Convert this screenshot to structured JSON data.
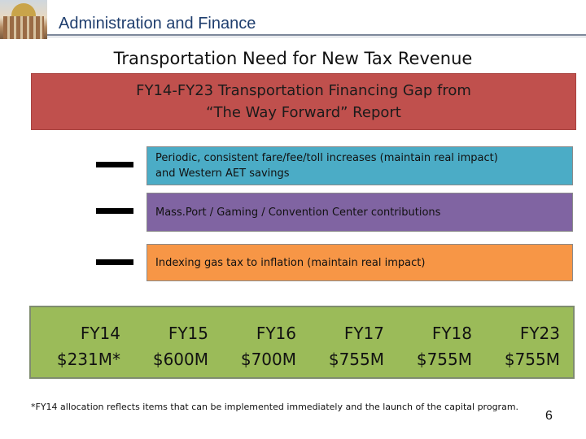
{
  "header": {
    "title": "Administration and Finance"
  },
  "slide": {
    "title": "Transportation Need for New Tax Revenue",
    "gap_box": {
      "line1": "FY14-FY23 Transportation Financing Gap from",
      "line2": "“The Way Forward” Report",
      "color": "#c0504d"
    },
    "components": [
      {
        "line1": "Periodic, consistent fare/fee/toll increases (maintain real impact)",
        "line2": "and Western AET savings",
        "color": "#4bacc6"
      },
      {
        "line1": "Mass.Port / Gaming / Convention Center contributions",
        "line2": "",
        "color": "#8064a2"
      },
      {
        "line1": "Indexing gas tax to inflation (maintain real impact)",
        "line2": "",
        "color": "#f79646"
      }
    ],
    "fiscal_years": [
      {
        "year": "FY14",
        "amount": "$231M*"
      },
      {
        "year": "FY15",
        "amount": "$600M"
      },
      {
        "year": "FY16",
        "amount": "$700M"
      },
      {
        "year": "FY17",
        "amount": "$755M"
      },
      {
        "year": "FY18",
        "amount": "$755M"
      },
      {
        "year": "FY23",
        "amount": "$755M"
      }
    ],
    "fy_box_color": "#9bbb59",
    "footnote": "*FY14 allocation reflects items that can be implemented immediately and the launch of the capital program.",
    "page_number": "6"
  }
}
